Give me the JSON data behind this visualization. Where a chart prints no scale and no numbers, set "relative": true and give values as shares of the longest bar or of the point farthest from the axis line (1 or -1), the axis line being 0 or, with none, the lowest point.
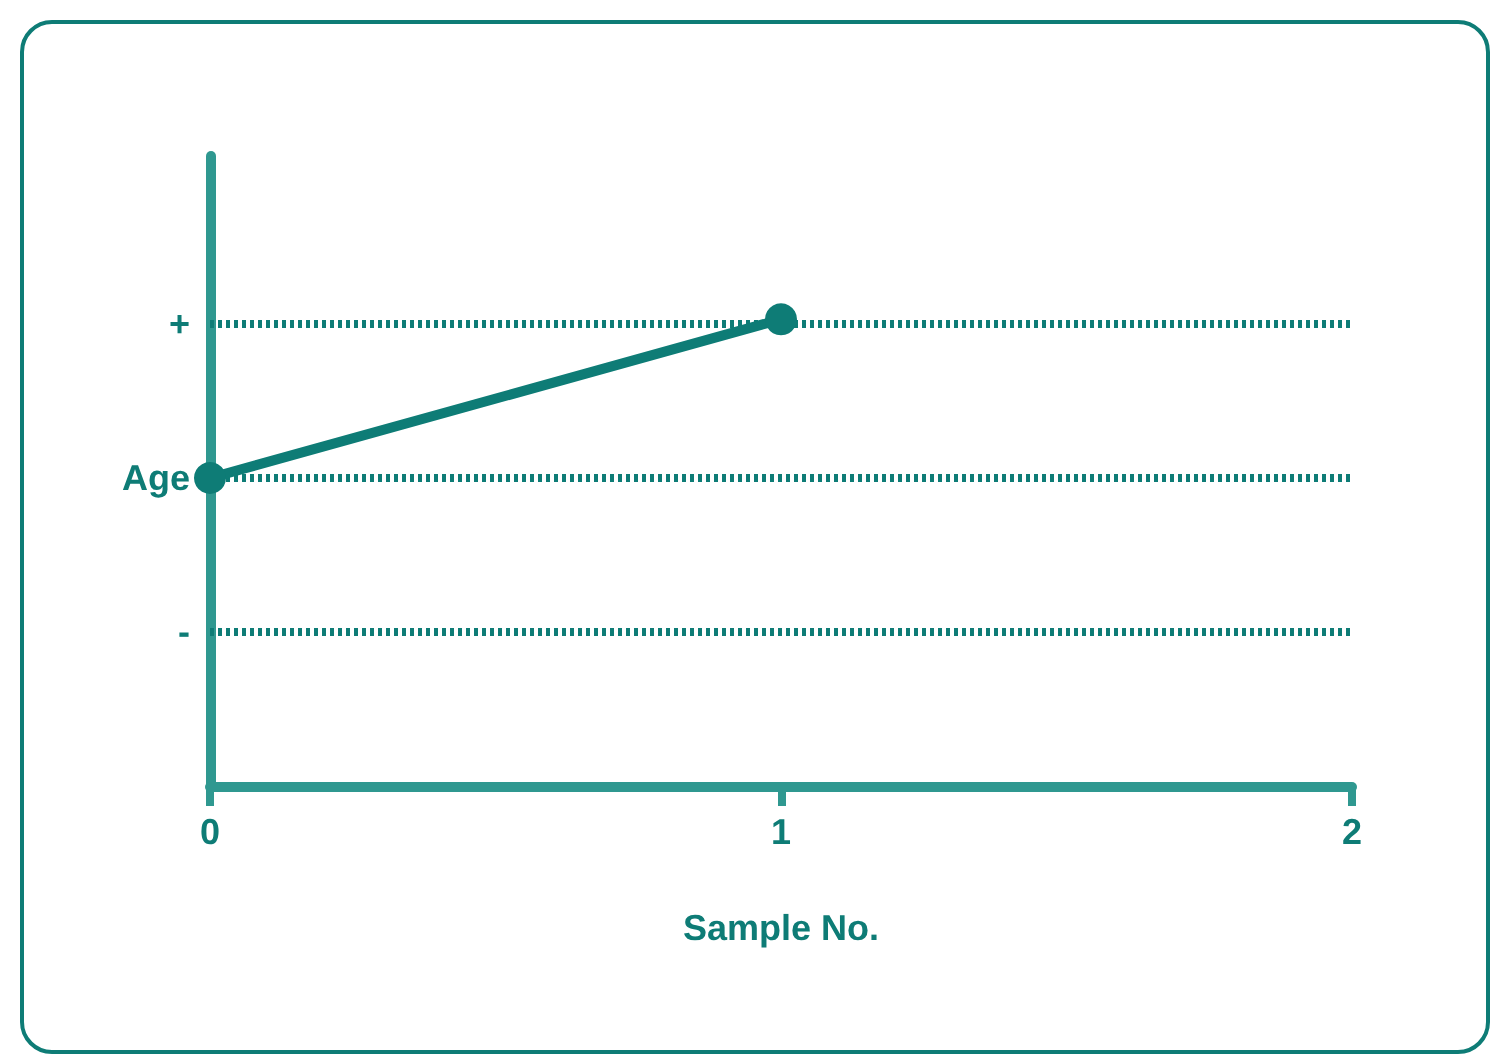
{
  "chart_data": {
    "type": "line",
    "xlabel": "Sample No.",
    "x": [
      0,
      1
    ],
    "series": [
      {
        "color": "#0e7c76",
        "values": [
          0.66,
          1
        ]
      }
    ],
    "relative": true,
    "xlim": [
      0,
      2
    ],
    "xticks": [
      0,
      1,
      2
    ],
    "ref_lines": [
      {
        "axis": "y",
        "value": 0.99,
        "label": "+",
        "color": "#0e7c76",
        "line_style": "dotted"
      },
      {
        "axis": "y",
        "value": 0.66,
        "label": "Age",
        "color": "#0e7c76",
        "line_style": "dotted"
      },
      {
        "axis": "y",
        "value": 0.33,
        "label": "-",
        "color": "#0e7c76",
        "line_style": "dotted"
      }
    ],
    "marker": "circle"
  }
}
